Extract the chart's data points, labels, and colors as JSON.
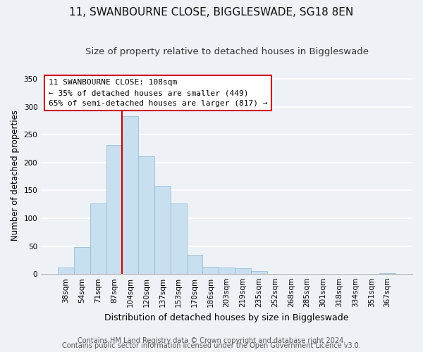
{
  "title": "11, SWANBOURNE CLOSE, BIGGLESWADE, SG18 8EN",
  "subtitle": "Size of property relative to detached houses in Biggleswade",
  "xlabel": "Distribution of detached houses by size in Biggleswade",
  "ylabel": "Number of detached properties",
  "bar_labels": [
    "38sqm",
    "54sqm",
    "71sqm",
    "87sqm",
    "104sqm",
    "120sqm",
    "137sqm",
    "153sqm",
    "170sqm",
    "186sqm",
    "203sqm",
    "219sqm",
    "235sqm",
    "252sqm",
    "268sqm",
    "285sqm",
    "301sqm",
    "318sqm",
    "334sqm",
    "351sqm",
    "367sqm"
  ],
  "bar_values": [
    11,
    48,
    127,
    231,
    283,
    211,
    158,
    126,
    34,
    13,
    12,
    10,
    5,
    0,
    0,
    0,
    0,
    0,
    0,
    0,
    1
  ],
  "bar_color": "#c8dff0",
  "bar_edge_color": "#9abdd8",
  "vline_x_index": 4,
  "vline_color": "#cc0000",
  "annotation_line1": "11 SWANBOURNE CLOSE: 108sqm",
  "annotation_line2": "← 35% of detached houses are smaller (449)",
  "annotation_line3": "65% of semi-detached houses are larger (817) →",
  "annotation_box_facecolor": "#ffffff",
  "annotation_box_edgecolor": "#cc0000",
  "ylim": [
    0,
    355
  ],
  "yticks": [
    0,
    50,
    100,
    150,
    200,
    250,
    300,
    350
  ],
  "footer_line1": "Contains HM Land Registry data © Crown copyright and database right 2024.",
  "footer_line2": "Contains public sector information licensed under the Open Government Licence v3.0.",
  "figure_facecolor": "#eef2f7",
  "axes_facecolor": "#eef2f7",
  "grid_color": "#ffffff",
  "title_fontsize": 11,
  "subtitle_fontsize": 9.5,
  "xlabel_fontsize": 9,
  "ylabel_fontsize": 8.5,
  "tick_fontsize": 7.5,
  "annotation_fontsize": 8,
  "footer_fontsize": 7
}
